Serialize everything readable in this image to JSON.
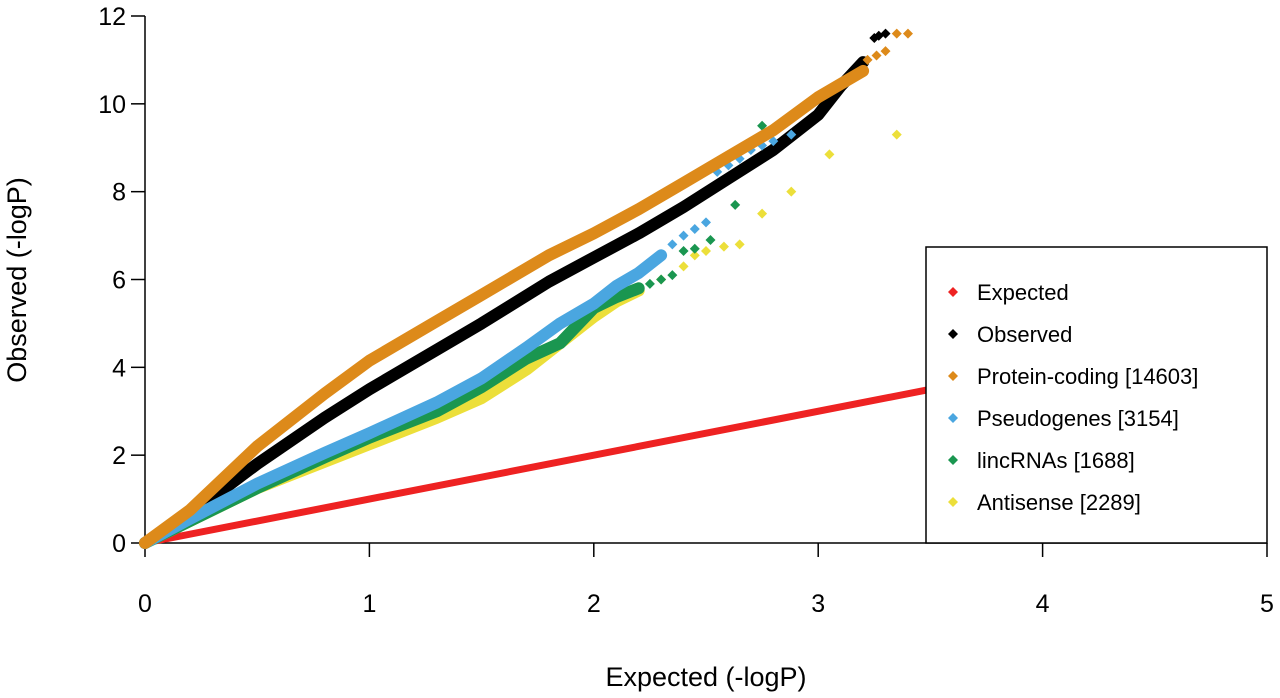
{
  "chart_data": {
    "type": "scatter",
    "title": "",
    "xlabel": "Expected (-logP)",
    "ylabel": "Observed (-logP)",
    "xlim": [
      0,
      5
    ],
    "ylim": [
      0,
      12
    ],
    "x_ticks": [
      "0",
      "1",
      "2",
      "3",
      "4",
      "5"
    ],
    "y_ticks": [
      "0",
      "2",
      "4",
      "6",
      "8",
      "10",
      "12"
    ],
    "grid": false,
    "legend_position": "right",
    "series": [
      {
        "name": "Expected",
        "color": "#ee2222",
        "style": "line",
        "points": [
          [
            0,
            0
          ],
          [
            5,
            5
          ]
        ]
      },
      {
        "name": "Observed",
        "color": "#000000",
        "style": "dense",
        "points": [
          [
            0,
            0
          ],
          [
            0.2,
            0.65
          ],
          [
            0.5,
            1.8
          ],
          [
            0.8,
            2.85
          ],
          [
            1.0,
            3.5
          ],
          [
            1.3,
            4.4
          ],
          [
            1.5,
            5.0
          ],
          [
            1.8,
            5.95
          ],
          [
            2.0,
            6.5
          ],
          [
            2.2,
            7.05
          ],
          [
            2.4,
            7.65
          ],
          [
            2.6,
            8.3
          ],
          [
            2.8,
            8.95
          ],
          [
            3.0,
            9.75
          ],
          [
            3.1,
            10.4
          ],
          [
            3.2,
            10.95
          ]
        ],
        "tail": [
          [
            3.25,
            11.5
          ],
          [
            3.27,
            11.55
          ],
          [
            3.3,
            11.6
          ]
        ]
      },
      {
        "name": "Protein-coding [14603]",
        "color": "#dd8a1a",
        "style": "dense",
        "points": [
          [
            0,
            0
          ],
          [
            0.2,
            0.75
          ],
          [
            0.5,
            2.2
          ],
          [
            0.8,
            3.4
          ],
          [
            1.0,
            4.15
          ],
          [
            1.3,
            5.05
          ],
          [
            1.5,
            5.65
          ],
          [
            1.8,
            6.55
          ],
          [
            2.0,
            7.05
          ],
          [
            2.2,
            7.6
          ],
          [
            2.4,
            8.2
          ],
          [
            2.6,
            8.8
          ],
          [
            2.8,
            9.4
          ],
          [
            3.0,
            10.15
          ],
          [
            3.1,
            10.45
          ],
          [
            3.2,
            10.75
          ]
        ],
        "tail": [
          [
            3.22,
            11.0
          ],
          [
            3.26,
            11.1
          ],
          [
            3.3,
            11.2
          ],
          [
            3.35,
            11.6
          ],
          [
            3.4,
            11.6
          ]
        ]
      },
      {
        "name": "Pseudogenes [3154]",
        "color": "#4aa6e0",
        "style": "dense",
        "points": [
          [
            0,
            0
          ],
          [
            0.2,
            0.55
          ],
          [
            0.5,
            1.35
          ],
          [
            0.8,
            2.05
          ],
          [
            1.0,
            2.5
          ],
          [
            1.3,
            3.2
          ],
          [
            1.5,
            3.75
          ],
          [
            1.7,
            4.45
          ],
          [
            1.85,
            5.0
          ],
          [
            2.0,
            5.45
          ],
          [
            2.1,
            5.85
          ],
          [
            2.2,
            6.15
          ],
          [
            2.3,
            6.55
          ]
        ],
        "tail": [
          [
            2.35,
            6.8
          ],
          [
            2.4,
            7.0
          ],
          [
            2.45,
            7.15
          ],
          [
            2.5,
            7.3
          ],
          [
            2.55,
            8.45
          ],
          [
            2.6,
            8.6
          ],
          [
            2.65,
            8.75
          ],
          [
            2.7,
            8.95
          ],
          [
            2.75,
            9.05
          ],
          [
            2.8,
            9.15
          ],
          [
            2.88,
            9.3
          ]
        ]
      },
      {
        "name": "lincRNAs [1688]",
        "color": "#1a9650",
        "style": "dense",
        "points": [
          [
            0,
            0
          ],
          [
            0.2,
            0.5
          ],
          [
            0.5,
            1.25
          ],
          [
            0.8,
            1.95
          ],
          [
            1.0,
            2.4
          ],
          [
            1.3,
            3.0
          ],
          [
            1.5,
            3.55
          ],
          [
            1.7,
            4.2
          ],
          [
            1.85,
            4.55
          ],
          [
            2.0,
            5.35
          ],
          [
            2.1,
            5.6
          ],
          [
            2.2,
            5.8
          ]
        ],
        "tail": [
          [
            2.25,
            5.9
          ],
          [
            2.3,
            6.0
          ],
          [
            2.35,
            6.1
          ],
          [
            2.4,
            6.65
          ],
          [
            2.45,
            6.7
          ],
          [
            2.52,
            6.9
          ],
          [
            2.63,
            7.7
          ],
          [
            2.75,
            9.5
          ]
        ]
      },
      {
        "name": "Antisense [2289]",
        "color": "#ecdf3a",
        "style": "dense",
        "points": [
          [
            0,
            0
          ],
          [
            0.2,
            0.5
          ],
          [
            0.5,
            1.25
          ],
          [
            0.8,
            1.85
          ],
          [
            1.0,
            2.25
          ],
          [
            1.3,
            2.85
          ],
          [
            1.5,
            3.3
          ],
          [
            1.7,
            3.95
          ],
          [
            1.85,
            4.55
          ],
          [
            2.0,
            5.15
          ],
          [
            2.1,
            5.5
          ],
          [
            2.2,
            5.75
          ]
        ],
        "tail": [
          [
            2.3,
            6.0
          ],
          [
            2.4,
            6.3
          ],
          [
            2.45,
            6.55
          ],
          [
            2.5,
            6.65
          ],
          [
            2.58,
            6.75
          ],
          [
            2.65,
            6.8
          ],
          [
            2.75,
            7.5
          ],
          [
            2.88,
            8.0
          ],
          [
            3.05,
            8.85
          ],
          [
            3.35,
            9.3
          ]
        ]
      }
    ]
  }
}
